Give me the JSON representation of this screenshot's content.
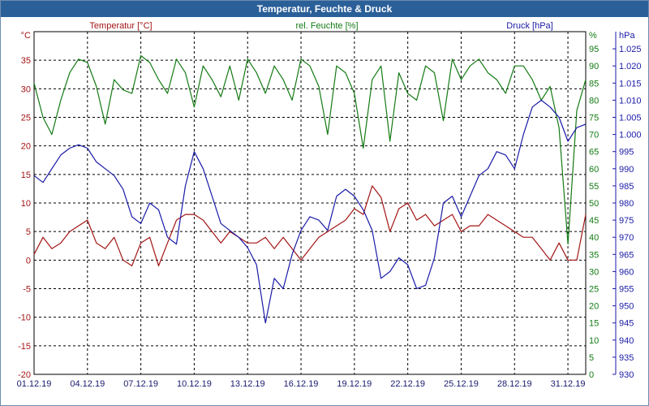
{
  "window": {
    "title": "Temperatur, Feuchte & Druck"
  },
  "colors": {
    "temperature": "#a31515",
    "humidity": "#137a13",
    "pressure": "#1a1aa8",
    "title_bar": "#2b5f98"
  },
  "chart_data": {
    "type": "line",
    "title": "Temperatur, Feuchte & Druck",
    "grid": true,
    "x_ticks": [
      "01.12.19",
      "04.12.19",
      "07.12.19",
      "10.12.19",
      "13.12.19",
      "16.12.19",
      "19.12.19",
      "22.12.19",
      "25.12.19",
      "28.12.19",
      "31.12.19"
    ],
    "x_range": [
      0,
      31
    ],
    "axes": {
      "temperature": {
        "unit": "°C",
        "label": "Temperatur [°C]",
        "range": [
          -20,
          40
        ],
        "ticks": [
          35,
          30,
          25,
          20,
          15,
          10,
          5,
          0,
          -5,
          -10,
          -15,
          -20
        ]
      },
      "humidity": {
        "unit": "%",
        "label": "rel. Feuchte [%]",
        "range": [
          0,
          100
        ],
        "ticks": [
          95,
          90,
          85,
          80,
          75,
          70,
          65,
          60,
          55,
          50,
          45,
          40,
          35,
          30,
          25,
          20,
          15,
          10,
          5,
          0
        ]
      },
      "pressure": {
        "unit": "hPa",
        "label": "Druck [hPa]",
        "range": [
          930,
          1030
        ],
        "ticks": [
          "1.025",
          "1.020",
          "1.015",
          "1.010",
          "1.005",
          "1.000",
          "995",
          "990",
          "985",
          "980",
          "975",
          "970",
          "965",
          "960",
          "955",
          "950",
          "945",
          "940",
          "935",
          "930"
        ]
      }
    },
    "series": [
      {
        "name": "Temperatur [°C]",
        "axis": "temperature",
        "x": [
          0,
          0.5,
          1,
          1.5,
          2,
          2.5,
          3,
          3.5,
          4,
          4.5,
          5,
          5.5,
          6,
          6.5,
          7,
          7.5,
          8,
          8.5,
          9,
          9.5,
          10,
          10.5,
          11,
          11.5,
          12,
          12.5,
          13,
          13.5,
          14,
          14.5,
          15,
          15.5,
          16,
          16.5,
          17,
          17.5,
          18,
          18.5,
          19,
          19.5,
          20,
          20.5,
          21,
          21.5,
          22,
          22.5,
          23,
          23.5,
          24,
          24.5,
          25,
          25.5,
          26,
          26.5,
          27,
          27.5,
          28,
          28.5,
          29,
          29.5,
          30,
          30.5,
          31
        ],
        "values": [
          1,
          4,
          2,
          3,
          5,
          6,
          7,
          3,
          2,
          4,
          0,
          -1,
          3,
          4,
          -1,
          3,
          7,
          8,
          8,
          7,
          5,
          3,
          5,
          4,
          3,
          3,
          4,
          2,
          4,
          2,
          0,
          2,
          4,
          5,
          6,
          7,
          9,
          8,
          13,
          11,
          5,
          9,
          10,
          7,
          8,
          6,
          7,
          8,
          5,
          6,
          6,
          8,
          7,
          6,
          5,
          4,
          4,
          2,
          0,
          3,
          0,
          0,
          8
        ],
        "values_description": "approximate, read from gridlines"
      },
      {
        "name": "rel. Feuchte [%]",
        "axis": "humidity",
        "x": [
          0,
          0.5,
          1,
          1.5,
          2,
          2.5,
          3,
          3.5,
          4,
          4.5,
          5,
          5.5,
          6,
          6.5,
          7,
          7.5,
          8,
          8.5,
          9,
          9.5,
          10,
          10.5,
          11,
          11.5,
          12,
          12.5,
          13,
          13.5,
          14,
          14.5,
          15,
          15.5,
          16,
          16.5,
          17,
          17.5,
          18,
          18.5,
          19,
          19.5,
          20,
          20.5,
          21,
          21.5,
          22,
          22.5,
          23,
          23.5,
          24,
          24.5,
          25,
          25.5,
          26,
          26.5,
          27,
          27.5,
          28,
          28.5,
          29,
          29.5,
          30,
          30.5,
          31
        ],
        "values": [
          85,
          75,
          70,
          80,
          88,
          92,
          91,
          84,
          73,
          86,
          83,
          82,
          93,
          91,
          86,
          82,
          92,
          88,
          78,
          90,
          86,
          81,
          90,
          80,
          92,
          88,
          82,
          90,
          86,
          80,
          92,
          90,
          84,
          70,
          90,
          88,
          82,
          66,
          86,
          90,
          68,
          88,
          82,
          80,
          90,
          88,
          74,
          92,
          86,
          90,
          92,
          88,
          86,
          82,
          90,
          90,
          86,
          80,
          84,
          72,
          38,
          77,
          86
        ]
      },
      {
        "name": "Druck [hPa]",
        "axis": "pressure",
        "x": [
          0,
          0.5,
          1,
          1.5,
          2,
          2.5,
          3,
          3.5,
          4,
          4.5,
          5,
          5.5,
          6,
          6.5,
          7,
          7.5,
          8,
          8.5,
          9,
          9.5,
          10,
          10.5,
          11,
          11.5,
          12,
          12.5,
          13,
          13.5,
          14,
          14.5,
          15,
          15.5,
          16,
          16.5,
          17,
          17.5,
          18,
          18.5,
          19,
          19.5,
          20,
          20.5,
          21,
          21.5,
          22,
          22.5,
          23,
          23.5,
          24,
          24.5,
          25,
          25.5,
          26,
          26.5,
          27,
          27.5,
          28,
          28.5,
          29,
          29.5,
          30,
          30.5,
          31
        ],
        "values": [
          988,
          986,
          990,
          994,
          996,
          997,
          996,
          992,
          990,
          988,
          984,
          976,
          974,
          980,
          978,
          970,
          968,
          985,
          995,
          990,
          982,
          974,
          972,
          970,
          967,
          962,
          945,
          958,
          955,
          965,
          972,
          976,
          975,
          972,
          982,
          984,
          982,
          978,
          972,
          958,
          960,
          964,
          962,
          955,
          956,
          964,
          980,
          982,
          976,
          982,
          988,
          990,
          995,
          994,
          990,
          1000,
          1008,
          1010,
          1008,
          1005,
          998,
          1002,
          1003
        ]
      }
    ]
  }
}
